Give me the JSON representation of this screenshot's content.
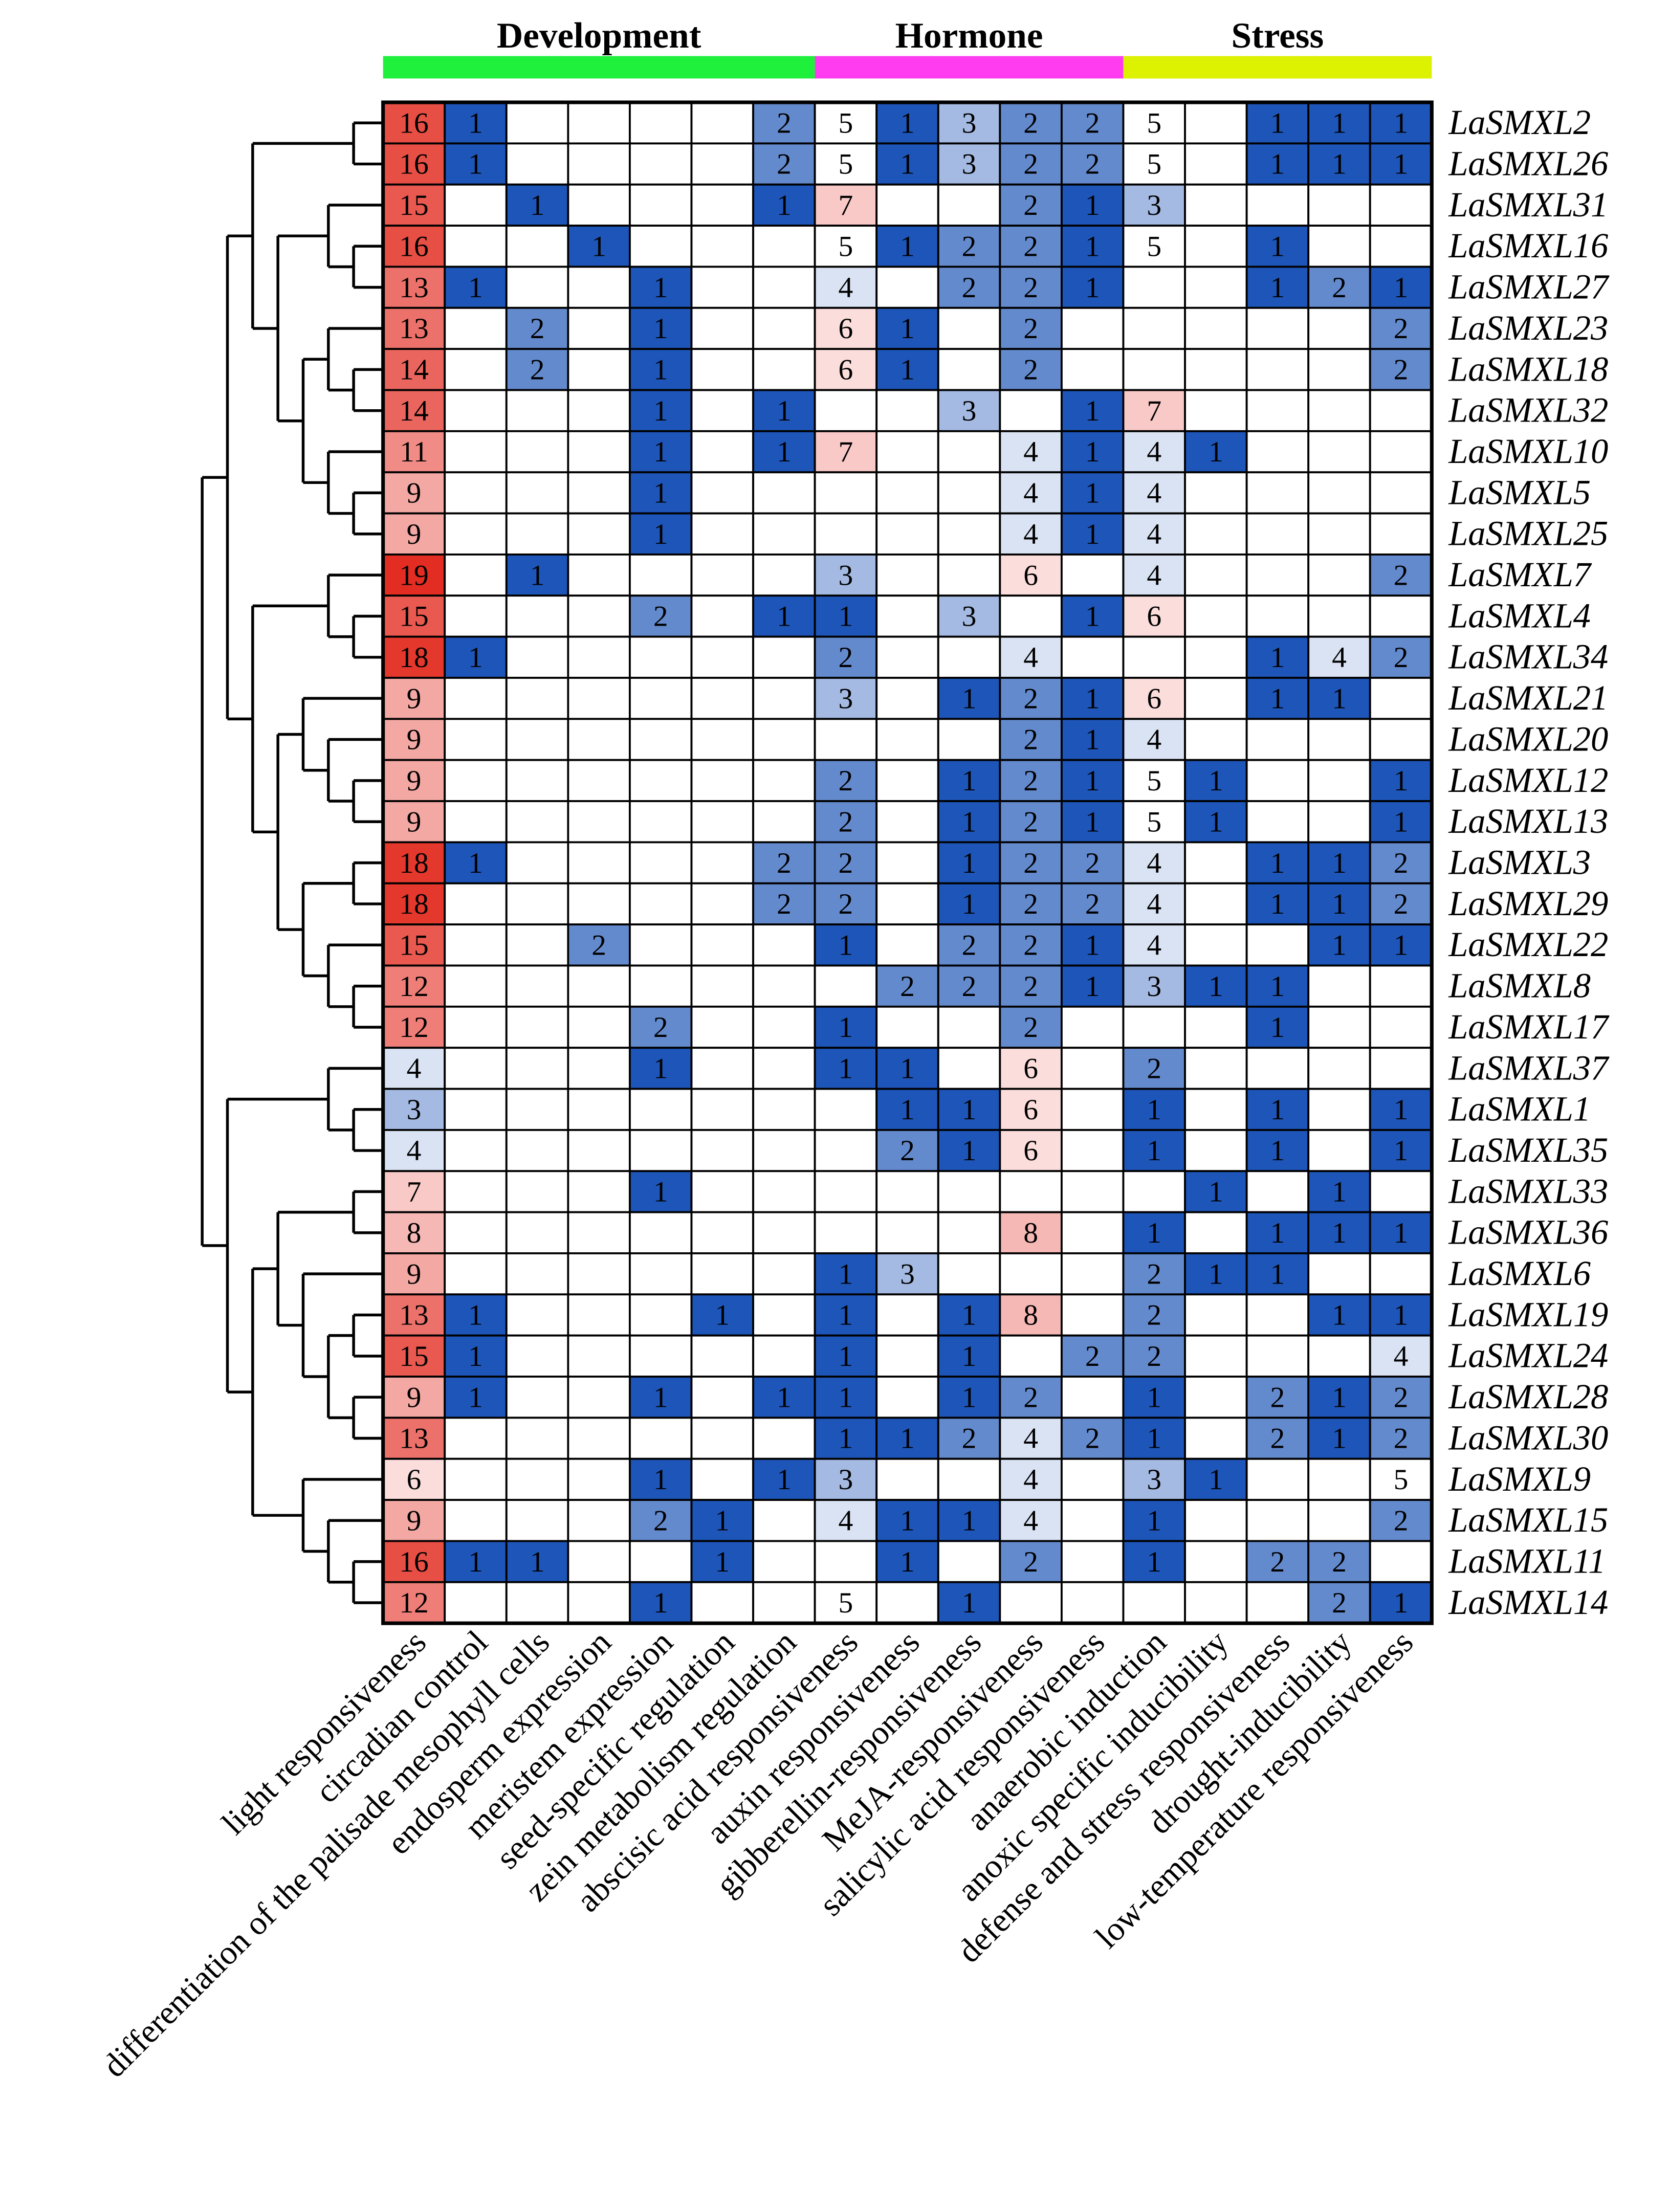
{
  "chart_data": {
    "type": "heatmap",
    "groups": [
      {
        "name": "Development",
        "from": 0,
        "to": 6,
        "color": "#1ef03c"
      },
      {
        "name": "Hormone",
        "from": 7,
        "to": 11,
        "color": "#ff3cf0"
      },
      {
        "name": "Stress",
        "from": 12,
        "to": 16,
        "color": "#dcf200"
      }
    ],
    "columns": [
      "light responsiveness",
      "circadian control",
      "differentiation of the palisade mesophyll cells",
      "endosperm expression",
      "meristem expression",
      "seed-specific regulation",
      "zein metabolism regulation",
      "abscisic acid responsiveness",
      "auxin responsiveness",
      "gibberellin-responsiveness",
      "MeJA-responsiveness",
      "salicylic acid responsiveness",
      "anaerobic induction",
      "anoxic specific inducibility",
      "defense and stress responsiveness",
      "drought-inducibility",
      "low-temperature responsiveness"
    ],
    "rows": [
      "LaSMXL2",
      "LaSMXL26",
      "LaSMXL31",
      "LaSMXL16",
      "LaSMXL27",
      "LaSMXL23",
      "LaSMXL18",
      "LaSMXL32",
      "LaSMXL10",
      "LaSMXL5",
      "LaSMXL25",
      "LaSMXL7",
      "LaSMXL4",
      "LaSMXL34",
      "LaSMXL21",
      "LaSMXL20",
      "LaSMXL12",
      "LaSMXL13",
      "LaSMXL3",
      "LaSMXL29",
      "LaSMXL22",
      "LaSMXL8",
      "LaSMXL17",
      "LaSMXL37",
      "LaSMXL1",
      "LaSMXL35",
      "LaSMXL33",
      "LaSMXL36",
      "LaSMXL6",
      "LaSMXL19",
      "LaSMXL24",
      "LaSMXL28",
      "LaSMXL30",
      "LaSMXL9",
      "LaSMXL15",
      "LaSMXL11",
      "LaSMXL14"
    ],
    "values": [
      [
        16,
        1,
        null,
        null,
        null,
        null,
        2,
        5,
        1,
        3,
        2,
        2,
        5,
        null,
        1,
        1,
        1
      ],
      [
        16,
        1,
        null,
        null,
        null,
        null,
        2,
        5,
        1,
        3,
        2,
        2,
        5,
        null,
        1,
        1,
        1
      ],
      [
        15,
        null,
        1,
        null,
        null,
        null,
        1,
        7,
        null,
        null,
        2,
        1,
        3,
        null,
        null,
        null,
        null
      ],
      [
        16,
        null,
        null,
        1,
        null,
        null,
        null,
        5,
        1,
        2,
        2,
        1,
        5,
        null,
        1,
        null,
        null
      ],
      [
        13,
        1,
        null,
        null,
        1,
        null,
        null,
        4,
        null,
        2,
        2,
        1,
        null,
        null,
        1,
        2,
        1
      ],
      [
        13,
        null,
        2,
        null,
        1,
        null,
        null,
        6,
        1,
        null,
        2,
        null,
        null,
        null,
        null,
        null,
        2
      ],
      [
        14,
        null,
        2,
        null,
        1,
        null,
        null,
        6,
        1,
        null,
        2,
        null,
        null,
        null,
        null,
        null,
        2
      ],
      [
        14,
        null,
        null,
        null,
        1,
        null,
        1,
        null,
        null,
        3,
        null,
        1,
        7,
        null,
        null,
        null,
        null
      ],
      [
        11,
        null,
        null,
        null,
        1,
        null,
        1,
        7,
        null,
        null,
        4,
        1,
        4,
        1,
        null,
        null,
        null
      ],
      [
        9,
        null,
        null,
        null,
        1,
        null,
        null,
        null,
        null,
        null,
        4,
        1,
        4,
        null,
        null,
        null,
        null
      ],
      [
        9,
        null,
        null,
        null,
        1,
        null,
        null,
        null,
        null,
        null,
        4,
        1,
        4,
        null,
        null,
        null,
        null
      ],
      [
        19,
        null,
        1,
        null,
        null,
        null,
        null,
        3,
        null,
        null,
        6,
        null,
        4,
        null,
        null,
        null,
        2
      ],
      [
        15,
        null,
        null,
        null,
        2,
        null,
        1,
        1,
        null,
        3,
        null,
        1,
        6,
        null,
        null,
        null,
        null
      ],
      [
        18,
        1,
        null,
        null,
        null,
        null,
        null,
        2,
        null,
        null,
        4,
        null,
        null,
        null,
        1,
        4,
        2
      ],
      [
        9,
        null,
        null,
        null,
        null,
        null,
        null,
        3,
        null,
        1,
        2,
        1,
        6,
        null,
        1,
        1,
        null
      ],
      [
        9,
        null,
        null,
        null,
        null,
        null,
        null,
        null,
        null,
        null,
        2,
        1,
        4,
        null,
        null,
        null,
        null
      ],
      [
        9,
        null,
        null,
        null,
        null,
        null,
        null,
        2,
        null,
        1,
        2,
        1,
        5,
        1,
        null,
        null,
        1
      ],
      [
        9,
        null,
        null,
        null,
        null,
        null,
        null,
        2,
        null,
        1,
        2,
        1,
        5,
        1,
        null,
        null,
        1
      ],
      [
        18,
        1,
        null,
        null,
        null,
        null,
        2,
        2,
        null,
        1,
        2,
        2,
        4,
        null,
        1,
        1,
        2
      ],
      [
        18,
        null,
        null,
        null,
        null,
        null,
        2,
        2,
        null,
        1,
        2,
        2,
        4,
        null,
        1,
        1,
        2
      ],
      [
        15,
        null,
        null,
        2,
        null,
        null,
        null,
        1,
        null,
        2,
        2,
        1,
        4,
        null,
        null,
        1,
        1
      ],
      [
        12,
        null,
        null,
        null,
        null,
        null,
        null,
        null,
        2,
        2,
        2,
        1,
        3,
        1,
        1,
        null,
        null
      ],
      [
        12,
        null,
        null,
        null,
        2,
        null,
        null,
        1,
        null,
        null,
        2,
        null,
        null,
        null,
        1,
        null,
        null
      ],
      [
        4,
        null,
        null,
        null,
        1,
        null,
        null,
        1,
        1,
        null,
        6,
        null,
        2,
        null,
        null,
        null,
        null
      ],
      [
        3,
        null,
        null,
        null,
        null,
        null,
        null,
        null,
        1,
        1,
        6,
        null,
        1,
        null,
        1,
        null,
        1
      ],
      [
        4,
        null,
        null,
        null,
        null,
        null,
        null,
        null,
        2,
        1,
        6,
        null,
        1,
        null,
        1,
        null,
        1
      ],
      [
        7,
        null,
        null,
        null,
        1,
        null,
        null,
        null,
        null,
        null,
        null,
        null,
        null,
        1,
        null,
        1,
        null
      ],
      [
        8,
        null,
        null,
        null,
        null,
        null,
        null,
        null,
        null,
        null,
        8,
        null,
        1,
        null,
        1,
        1,
        1
      ],
      [
        9,
        null,
        null,
        null,
        null,
        null,
        null,
        1,
        3,
        null,
        null,
        null,
        2,
        1,
        1,
        null,
        null
      ],
      [
        13,
        1,
        null,
        null,
        null,
        1,
        null,
        1,
        null,
        1,
        8,
        null,
        2,
        null,
        null,
        1,
        1
      ],
      [
        15,
        1,
        null,
        null,
        null,
        null,
        null,
        1,
        null,
        1,
        null,
        2,
        2,
        null,
        null,
        null,
        4
      ],
      [
        9,
        1,
        null,
        null,
        1,
        null,
        1,
        1,
        null,
        1,
        2,
        null,
        1,
        null,
        2,
        1,
        2
      ],
      [
        13,
        null,
        null,
        null,
        null,
        null,
        null,
        1,
        1,
        2,
        4,
        2,
        1,
        null,
        2,
        1,
        2
      ],
      [
        6,
        null,
        null,
        null,
        1,
        null,
        1,
        3,
        null,
        null,
        4,
        null,
        3,
        1,
        null,
        null,
        5
      ],
      [
        9,
        null,
        null,
        null,
        2,
        1,
        null,
        4,
        1,
        1,
        4,
        null,
        1,
        null,
        null,
        null,
        2
      ],
      [
        16,
        1,
        1,
        null,
        null,
        1,
        null,
        null,
        1,
        null,
        2,
        null,
        1,
        null,
        2,
        2,
        null
      ],
      [
        12,
        null,
        null,
        null,
        1,
        null,
        null,
        5,
        null,
        1,
        null,
        null,
        null,
        null,
        null,
        2,
        1
      ]
    ],
    "dendrogram": [
      [
        [
          [
            0,
            1
          ],
          [
            [
              2,
              [
                3,
                4
              ]
            ],
            [
              [
                5,
                [
                  6,
                  7
                ]
              ],
              [
                8,
                [
                  9,
                  10
                ]
              ]
            ]
          ]
        ],
        [
          [
            11,
            [
              12,
              13
            ]
          ],
          [
            [
              14,
              [
                15,
                [
                  16,
                  17
                ]
              ]
            ],
            [
              [
                18,
                19
              ],
              [
                20,
                [
                  21,
                  22
                ]
              ]
            ]
          ]
        ]
      ],
      [
        [
          23,
          [
            24,
            25
          ]
        ],
        [
          [
            [
              26,
              27
            ],
            [
              28,
              [
                [
                  29,
                  30
                ],
                [
                  31,
                  32
                ]
              ]
            ]
          ],
          [
            33,
            [
              34,
              [
                35,
                36
              ]
            ]
          ]
        ]
      ]
    ],
    "colors": {
      "low": "#1e55b8",
      "mid": "#ffffff",
      "high": "#e32d22",
      "grid": "#000000",
      "branch": "#000000"
    }
  }
}
